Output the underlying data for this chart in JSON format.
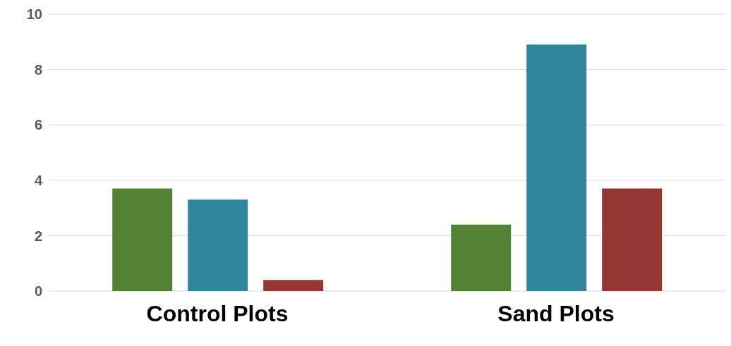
{
  "chart_data": {
    "type": "bar",
    "categories": [
      "Control Plots",
      "Sand Plots"
    ],
    "series": [
      {
        "color": "#548235",
        "values": [
          3.7,
          2.4
        ]
      },
      {
        "color": "#31859c",
        "values": [
          3.3,
          8.9
        ]
      },
      {
        "color": "#953735",
        "values": [
          0.4,
          3.7
        ]
      }
    ],
    "ylim": [
      0,
      10
    ],
    "yticks": [
      0,
      2,
      4,
      6,
      8,
      10
    ],
    "grid": "y",
    "legend": false
  }
}
